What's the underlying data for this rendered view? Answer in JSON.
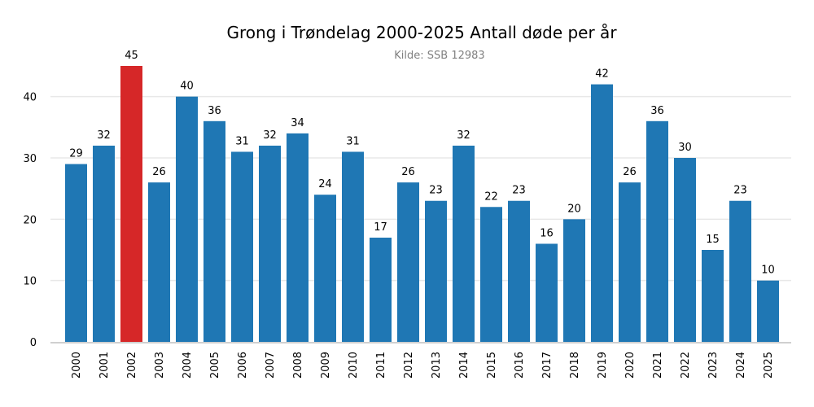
{
  "title": "Grong i Trøndelag 2000-2025 Antall døde per år",
  "subtitle": "Kilde: SSB 12983",
  "colors": {
    "bar": "#1f77b4",
    "highlight": "#d62728",
    "grid": "#e8e8e8",
    "axis": "#d0d0d0"
  },
  "chart_data": {
    "type": "bar",
    "title": "Grong i Trøndelag 2000-2025 Antall døde per år",
    "subtitle": "Kilde: SSB 12983",
    "xlabel": "",
    "ylabel": "",
    "categories": [
      "2000",
      "2001",
      "2002",
      "2003",
      "2004",
      "2005",
      "2006",
      "2007",
      "2008",
      "2009",
      "2010",
      "2011",
      "2012",
      "2013",
      "2014",
      "2015",
      "2016",
      "2017",
      "2018",
      "2019",
      "2020",
      "2021",
      "2022",
      "2023",
      "2024",
      "2025"
    ],
    "values": [
      29,
      32,
      45,
      26,
      40,
      36,
      31,
      32,
      34,
      24,
      31,
      17,
      26,
      23,
      32,
      22,
      23,
      16,
      20,
      42,
      26,
      36,
      30,
      15,
      23,
      10
    ],
    "highlight_category": "2002",
    "ylim": [
      0,
      45
    ],
    "yticks": [
      0,
      10,
      20,
      30,
      40
    ],
    "grid": true,
    "data_labels": true,
    "legend": "none"
  }
}
